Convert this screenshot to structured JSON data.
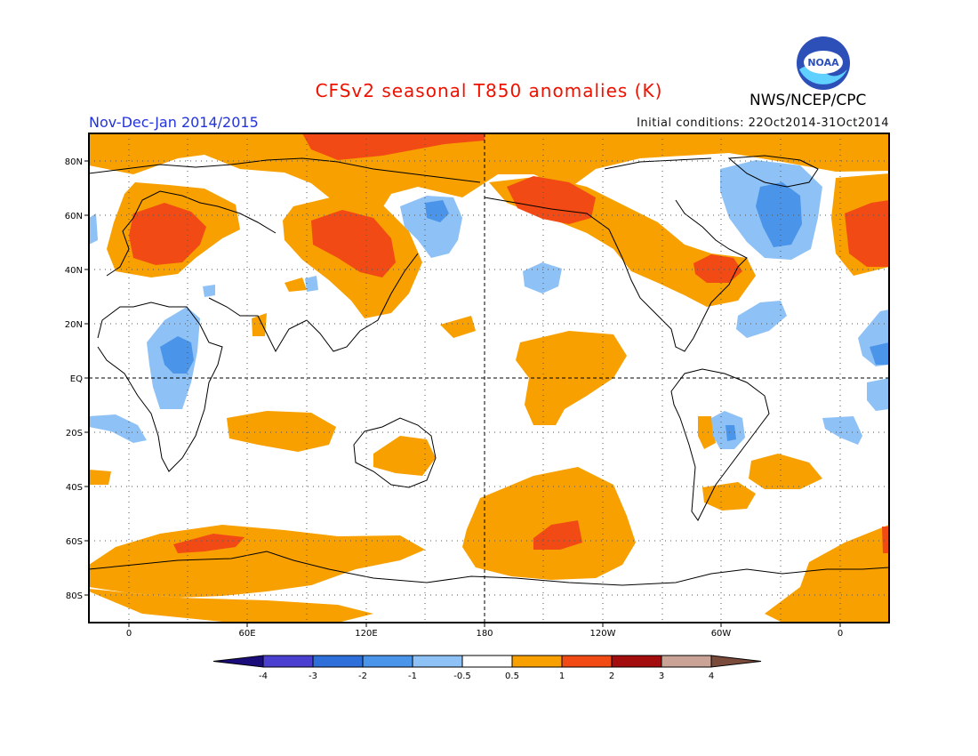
{
  "title": "CFSv2 seasonal T850 anomalies (K)",
  "period": "Nov-Dec-Jan 2014/2015",
  "initial_conditions": "Initial conditions: 22Oct2014-31Oct2014",
  "org": "NWS/NCEP/CPC",
  "logo_text": "NOAA",
  "map": {
    "lat_labels": [
      "80N",
      "60N",
      "40N",
      "20N",
      "EQ",
      "20S",
      "40S",
      "60S",
      "80S"
    ],
    "lon_labels": [
      "0",
      "60E",
      "120E",
      "180",
      "120W",
      "60W",
      "0"
    ]
  },
  "colorbar": {
    "tick_labels": [
      "-4",
      "-3",
      "-2",
      "-1",
      "-0.5",
      "0.5",
      "1",
      "2",
      "3",
      "4"
    ],
    "colors": [
      "#1a0d7a",
      "#4a3fcf",
      "#2f6fd9",
      "#4a94ea",
      "#8ec1f5",
      "#ffffff",
      "#f7a000",
      "#f24a14",
      "#a30d0d",
      "#c9a396",
      "#7a4a3a"
    ]
  }
}
